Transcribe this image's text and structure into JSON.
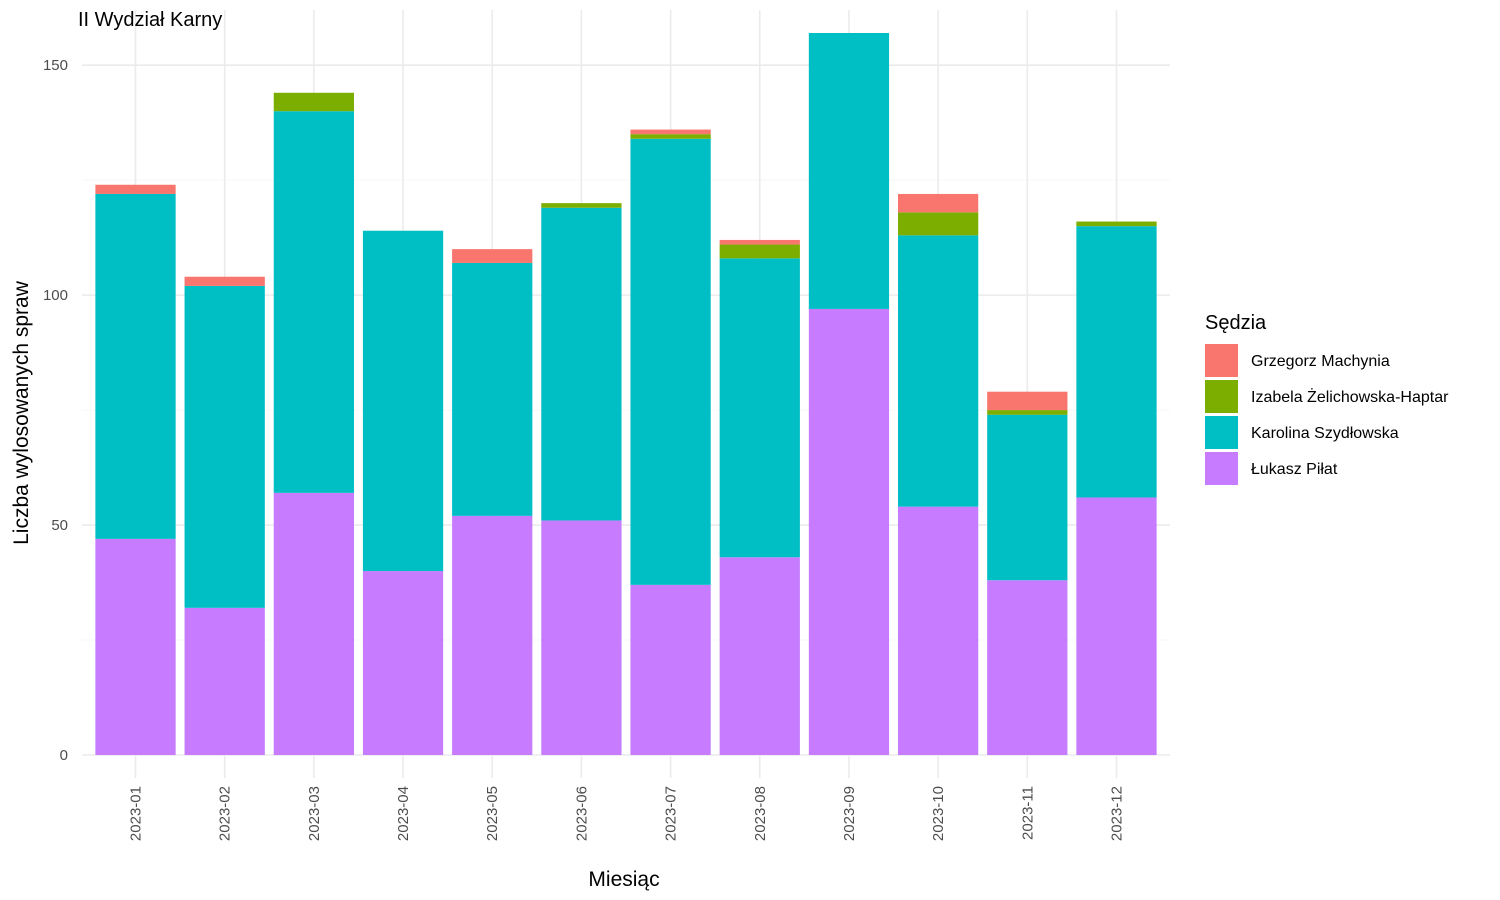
{
  "chart_data": {
    "type": "bar",
    "stacked": true,
    "title": "II Wydział Karny",
    "xlabel": "Miesiąc",
    "ylabel": "Liczba wylosowanych spraw",
    "ylim": [
      -5,
      162
    ],
    "yticks": [
      0,
      50,
      100,
      150
    ],
    "grid": true,
    "legend": {
      "title": "Sędzia",
      "position": "right"
    },
    "categories": [
      "2023-01",
      "2023-02",
      "2023-03",
      "2023-04",
      "2023-05",
      "2023-06",
      "2023-07",
      "2023-08",
      "2023-09",
      "2023-10",
      "2023-11",
      "2023-12"
    ],
    "series": [
      {
        "name": "Grzegorz Machynia",
        "color": "#F8766D",
        "values": [
          2,
          2,
          0,
          0,
          3,
          0,
          1,
          1,
          0,
          4,
          4,
          0
        ]
      },
      {
        "name": "Izabela Żelichowska-Haptar",
        "color": "#7CAE00",
        "values": [
          0,
          0,
          4,
          0,
          0,
          1,
          1,
          3,
          0,
          5,
          1,
          1
        ]
      },
      {
        "name": "Karolina Szydłowska",
        "color": "#00BFC4",
        "values": [
          75,
          70,
          83,
          74,
          55,
          68,
          97,
          65,
          60,
          59,
          36,
          59
        ]
      },
      {
        "name": "Łukasz Piłat",
        "color": "#C77CFF",
        "values": [
          47,
          32,
          57,
          40,
          52,
          51,
          37,
          43,
          97,
          54,
          38,
          56
        ]
      }
    ]
  }
}
